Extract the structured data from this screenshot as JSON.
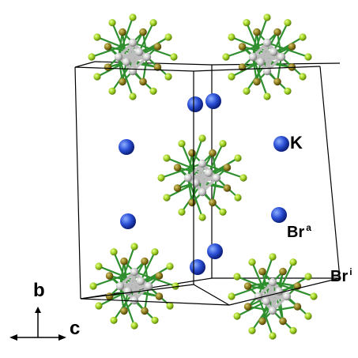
{
  "labels": {
    "k": "K",
    "br_a_base": "Br",
    "br_a_sup": "a",
    "br_i_base": "Br",
    "br_i_sup": "i"
  },
  "axes": {
    "vertical": "b",
    "horizontal": "c"
  },
  "colors": {
    "potassium": "#2b4fd6",
    "bromine_apical": "#9acd1f",
    "bromine_inner": "#8a7a1a",
    "cluster_metal": "#c8c8c8",
    "bond": "#2f8f2f",
    "cell_edge": "#000000"
  }
}
